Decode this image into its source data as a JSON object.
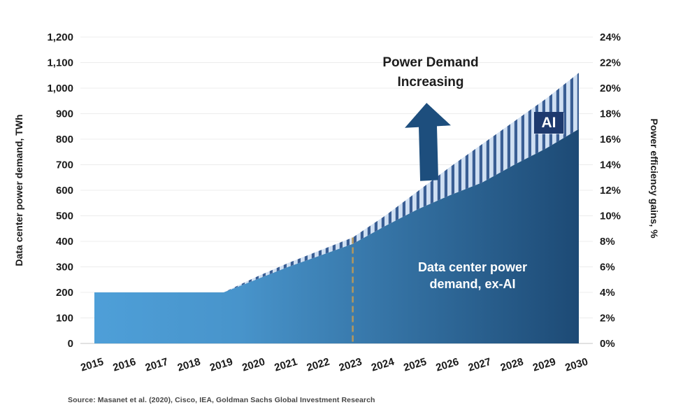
{
  "figure": {
    "annotation": {
      "line1": "Power Demand",
      "line2": "Increasing"
    },
    "ai_badge_label": "AI",
    "area_label": {
      "line1": "Data center power",
      "line2": "demand, ex-AI"
    },
    "source": "Source: Masanet et al. (2020), Cisco, IEA, Goldman Sachs Global Investment Research"
  },
  "chart_data": {
    "type": "area",
    "stacked": true,
    "title": "",
    "x": [
      2015,
      2016,
      2017,
      2018,
      2019,
      2020,
      2021,
      2022,
      2023,
      2024,
      2025,
      2026,
      2027,
      2028,
      2029,
      2030
    ],
    "series": [
      {
        "name": "Data center power demand, ex-AI",
        "values": [
          200,
          200,
          200,
          200,
          200,
          250,
          300,
          345,
          390,
          460,
          525,
          580,
          630,
          700,
          765,
          840
        ]
      },
      {
        "name": "AI",
        "values": [
          0,
          0,
          0,
          0,
          0,
          10,
          15,
          20,
          25,
          40,
          70,
          110,
          150,
          170,
          195,
          220
        ]
      }
    ],
    "left_axis": {
      "label": "Data center power demand, TWh",
      "min": 0,
      "max": 1200,
      "step": 100,
      "tick_labels": [
        "0",
        "100",
        "200",
        "300",
        "400",
        "500",
        "600",
        "700",
        "800",
        "900",
        "1,000",
        "1,100",
        "1,200"
      ]
    },
    "right_axis": {
      "label": "Power efficiency gains, %",
      "min": 0,
      "max": 24,
      "step": 2,
      "tick_labels": [
        "0%",
        "2%",
        "4%",
        "6%",
        "8%",
        "10%",
        "12%",
        "14%",
        "16%",
        "18%",
        "20%",
        "22%",
        "24%"
      ]
    },
    "grid": true,
    "legend": "none",
    "forecast_divider_x": 2023,
    "colors": {
      "area_gradient_left": "#4e9fd8",
      "area_gradient_mid": "#4894cb",
      "area_gradient_right": "#1d4a75",
      "ai_stripe_light": "#cfdff2",
      "ai_stripe_dark": "#3a5e94",
      "arrow": "#1d4e7d",
      "ai_badge_bg": "#1e3a6e",
      "dashed_line": "#b5985c",
      "gridline": "#ececec",
      "baseline": "#d9d9d9",
      "text": "#1a1a1a"
    }
  }
}
